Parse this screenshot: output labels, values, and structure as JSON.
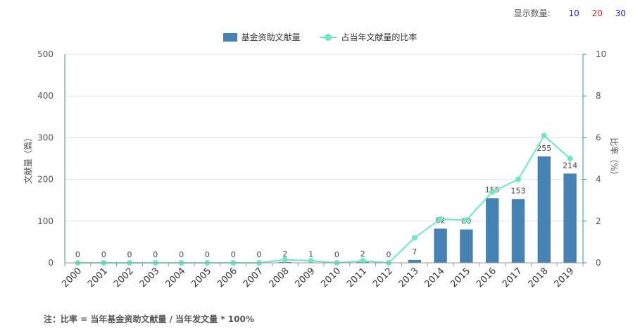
{
  "display_count": {
    "label": "显示数量:",
    "options": [
      {
        "text": "10",
        "color": "#1a1adb"
      },
      {
        "text": "20",
        "color": "#e0201f"
      },
      {
        "text": "30",
        "color": "#1a1adb"
      }
    ]
  },
  "note": "注：比率 = 当年基金资助文献量 / 当年发文量 * 100%",
  "colors": {
    "bar": "#4682b4",
    "line": "#6ee7c5",
    "axis": "#2a9d9a"
  },
  "chart_data": {
    "type": "bar",
    "categories": [
      "2000",
      "2001",
      "2002",
      "2003",
      "2004",
      "2005",
      "2006",
      "2007",
      "2008",
      "2009",
      "2010",
      "2011",
      "2012",
      "2013",
      "2014",
      "2015",
      "2016",
      "2017",
      "2018",
      "2019"
    ],
    "series": [
      {
        "name": "基金资助文献量",
        "type": "bar",
        "axis": "left",
        "values": [
          0,
          0,
          0,
          0,
          0,
          0,
          0,
          0,
          2,
          1,
          0,
          2,
          0,
          7,
          82,
          80,
          155,
          153,
          255,
          214
        ]
      },
      {
        "name": "占当年文献量的比率",
        "type": "line",
        "axis": "right",
        "values": [
          0,
          0,
          0,
          0,
          0,
          0,
          0,
          0,
          0.15,
          0.1,
          0,
          0.1,
          0,
          1.2,
          2.1,
          2.05,
          3.4,
          4.0,
          6.1,
          5.0
        ]
      }
    ],
    "ylabel": "文献量（篇）",
    "ylim": [
      0,
      500
    ],
    "yticks": [
      0,
      100,
      200,
      300,
      400,
      500
    ],
    "y2label": "比率（%）",
    "y2lim": [
      0,
      10
    ],
    "y2ticks": [
      0,
      2,
      4,
      6,
      8,
      10
    ],
    "grid": true,
    "legend": "top-center"
  }
}
